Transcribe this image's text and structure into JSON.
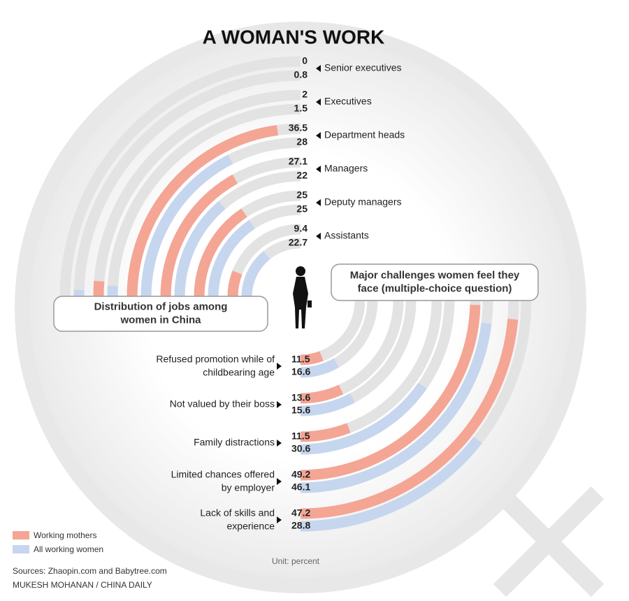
{
  "title": "A WOMAN'S WORK",
  "chart_data": [
    {
      "type": "radial_bar",
      "title": "Distribution of jobs among\nwomen in China",
      "categories": [
        "Senior executives",
        "Executives",
        "Department heads",
        "Managers",
        "Deputy managers",
        "Assistants"
      ],
      "series": [
        {
          "name": "Working mothers",
          "color": "#f5a594",
          "values": [
            0,
            2,
            36.5,
            27.1,
            25,
            9.4
          ]
        },
        {
          "name": "All working women",
          "color": "#c6d6ee",
          "values": [
            0.8,
            1.5,
            28,
            22,
            25,
            22.7
          ]
        }
      ],
      "rlim": [
        0,
        40
      ]
    },
    {
      "type": "radial_bar",
      "title": "Major challenges women feel they\nface (multiple-choice question)",
      "categories": [
        "Refused promotion while of\nchildbearing age",
        "Not valued by their boss",
        "Family distractions",
        "Limited chances offered\nby employer",
        "Lack of skills and\nexperience"
      ],
      "series": [
        {
          "name": "Working mothers",
          "color": "#f5a594",
          "values": [
            11.5,
            13.6,
            11.5,
            49.2,
            47.2
          ]
        },
        {
          "name": "All working women",
          "color": "#c6d6ee",
          "values": [
            16.6,
            15.6,
            30.6,
            46.1,
            28.8
          ]
        }
      ],
      "rlim": [
        0,
        50
      ]
    }
  ],
  "unit": "Unit: percent",
  "sources": "Sources: Zhaopin.com and Babytree.com",
  "credit": "MUKESH MOHANAN / CHINA DAILY"
}
